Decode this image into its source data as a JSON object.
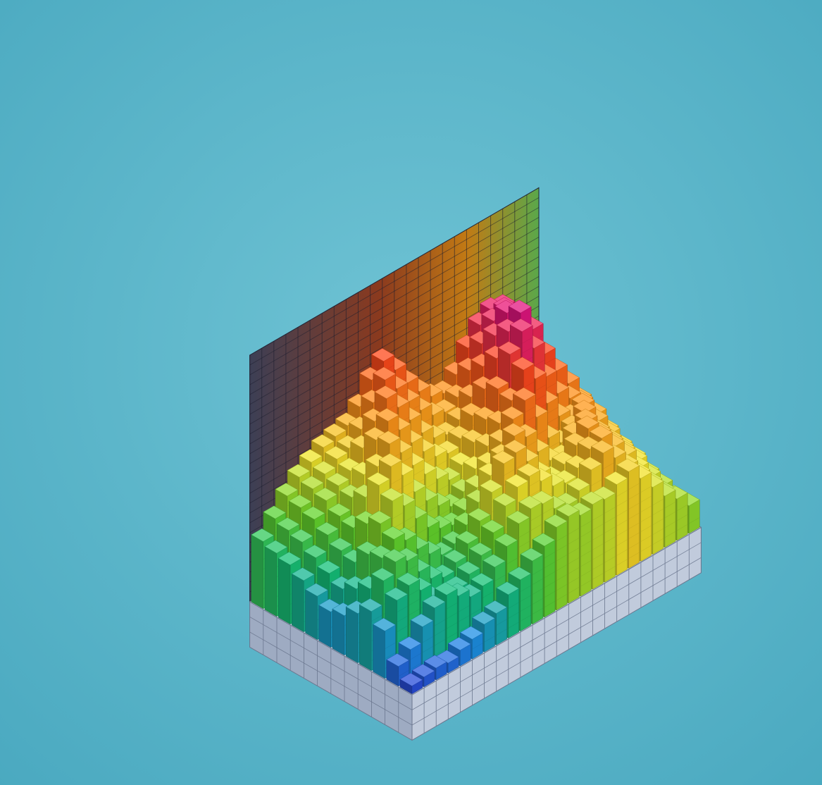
{
  "chart_data": {
    "type": "bar",
    "subtype": "isometric-3d-bar-histogram",
    "title": "",
    "xlabel": "",
    "ylabel": "",
    "zlabel": "",
    "grid": true,
    "legend": "none",
    "rows": 12,
    "columns": 24,
    "z_range": [
      0,
      10
    ],
    "heights": [
      [
        0.4,
        0.5,
        0.6,
        0.5,
        0.8,
        1.0,
        1.4,
        1.6,
        2.2,
        2.6,
        3.2,
        3.6,
        4.2,
        4.4,
        4.1,
        4.3,
        4.2,
        4.6,
        4.9,
        4.2,
        3.4,
        2.6,
        2.1,
        1.4
      ],
      [
        1.0,
        1.5,
        2.3,
        2.9,
        3.2,
        2.8,
        2.4,
        2.6,
        3.2,
        3.9,
        4.7,
        5.1,
        5.0,
        4.4,
        4.2,
        4.6,
        5.3,
        5.8,
        5.2,
        4.4,
        3.6,
        2.8,
        2.0,
        1.4
      ],
      [
        2.4,
        3.6,
        4.0,
        3.4,
        2.6,
        2.2,
        2.4,
        2.8,
        3.4,
        4.2,
        5.2,
        5.8,
        6.0,
        5.4,
        4.8,
        4.6,
        5.0,
        5.6,
        5.8,
        5.0,
        4.2,
        3.2,
        2.4,
        1.6
      ],
      [
        3.0,
        4.2,
        4.8,
        4.5,
        3.6,
        2.9,
        2.6,
        3.0,
        3.6,
        4.4,
        5.5,
        6.6,
        6.8,
        6.0,
        5.0,
        4.4,
        4.8,
        5.4,
        5.9,
        5.2,
        4.4,
        3.6,
        2.8,
        1.8
      ],
      [
        2.5,
        3.4,
        4.6,
        5.2,
        4.8,
        4.0,
        3.4,
        3.0,
        3.2,
        3.8,
        4.6,
        5.6,
        6.2,
        6.9,
        6.5,
        5.4,
        4.6,
        4.4,
        5.2,
        5.5,
        4.6,
        3.8,
        3.0,
        2.2
      ],
      [
        2.0,
        3.0,
        4.4,
        5.6,
        6.4,
        5.8,
        4.8,
        4.0,
        3.6,
        3.4,
        3.8,
        4.6,
        5.4,
        6.2,
        7.0,
        7.6,
        6.4,
        5.0,
        4.4,
        4.8,
        5.2,
        4.4,
        3.4,
        2.4
      ],
      [
        1.8,
        2.6,
        3.6,
        5.2,
        6.8,
        7.4,
        6.6,
        5.4,
        4.6,
        4.0,
        3.6,
        4.0,
        4.8,
        5.6,
        6.4,
        7.2,
        8.4,
        7.6,
        6.0,
        5.0,
        4.6,
        4.8,
        4.0,
        2.8
      ],
      [
        2.2,
        3.0,
        3.8,
        4.6,
        5.8,
        7.0,
        7.8,
        7.0,
        6.0,
        5.2,
        4.6,
        4.2,
        4.6,
        5.4,
        6.2,
        7.4,
        8.8,
        9.6,
        8.4,
        6.6,
        5.4,
        4.8,
        4.2,
        3.2
      ],
      [
        2.6,
        3.4,
        4.2,
        4.8,
        5.4,
        6.2,
        7.6,
        8.2,
        7.4,
        6.4,
        5.6,
        5.0,
        4.8,
        5.2,
        6.0,
        7.0,
        8.2,
        9.2,
        9.8,
        8.6,
        7.0,
        5.8,
        4.8,
        3.6
      ],
      [
        3.0,
        3.8,
        4.6,
        5.2,
        5.6,
        6.0,
        6.8,
        7.8,
        8.6,
        7.8,
        6.8,
        5.8,
        5.2,
        5.0,
        5.4,
        6.2,
        7.4,
        8.6,
        9.4,
        9.0,
        7.6,
        6.2,
        5.0,
        3.8
      ],
      [
        3.2,
        4.0,
        4.8,
        5.4,
        5.8,
        6.2,
        6.4,
        7.0,
        8.0,
        8.8,
        8.0,
        7.0,
        6.2,
        5.6,
        5.4,
        5.8,
        6.8,
        7.8,
        8.6,
        8.8,
        8.0,
        6.6,
        5.2,
        4.0
      ],
      [
        3.4,
        4.2,
        5.0,
        5.6,
        6.0,
        6.4,
        6.6,
        6.8,
        7.4,
        8.4,
        9.0,
        8.2,
        7.2,
        6.4,
        5.8,
        5.6,
        6.2,
        7.2,
        8.0,
        8.4,
        8.2,
        7.0,
        5.6,
        4.2
      ]
    ],
    "colors": [
      "#2a3fd6",
      "#1d8fe8",
      "#14c27a",
      "#66d62a",
      "#f2e62a",
      "#ff9a1a",
      "#ff4a1a",
      "#e8147a",
      "#8a2fe8"
    ],
    "background": "#4aa9c0",
    "wall_color": "#b9c3d6",
    "base_color": "#a9b7cc"
  }
}
